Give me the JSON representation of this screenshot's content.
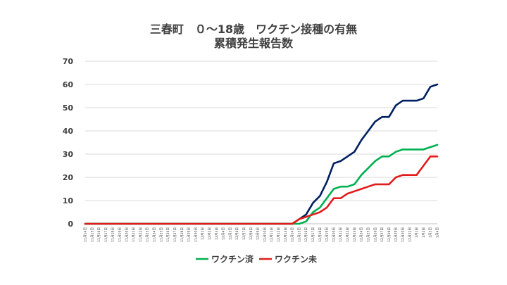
{
  "chart_data": {
    "type": "line",
    "title": "三春町　０～18歳　ワクチン接種の有無",
    "subtitle": "累積発生報告数",
    "xlabel": "",
    "ylabel": "",
    "ylim": [
      0,
      70
    ],
    "yticks": [
      0,
      10,
      20,
      30,
      40,
      50,
      60,
      70
    ],
    "grid": true,
    "legend_position": "bottom",
    "x": [
      "11月14日",
      "11月15日",
      "11月16日",
      "11月17日",
      "11月18日",
      "11月19日",
      "11月20日",
      "11月21日",
      "11月22日",
      "11月23日",
      "11月24日",
      "11月25日",
      "11月26日",
      "11月27日",
      "11月28日",
      "11月29日",
      "11月30日",
      "12月1日",
      "12月2日",
      "12月3日",
      "12月4日",
      "12月5日",
      "12月6日",
      "12月7日",
      "12月8日",
      "12月9日",
      "12月10日",
      "12月11日",
      "12月12日",
      "12月13日",
      "12月14日",
      "12月15日",
      "12月16日",
      "12月17日",
      "12月18日",
      "12月19日",
      "12月20日",
      "12月21日",
      "12月22日",
      "12月23日",
      "12月24日",
      "12月25日",
      "12月26日",
      "12月27日",
      "12月28日",
      "12月29日",
      "12月30日",
      "12月31日",
      "1月1日",
      "1月2日",
      "1月3日",
      "1月4日"
    ],
    "series": [
      {
        "name": "",
        "color": "#002060",
        "values": [
          0,
          0,
          0,
          0,
          0,
          0,
          0,
          0,
          0,
          0,
          0,
          0,
          0,
          0,
          0,
          0,
          0,
          0,
          0,
          0,
          0,
          0,
          0,
          0,
          0,
          0,
          0,
          0,
          0,
          0,
          0,
          2,
          4,
          9,
          12,
          18,
          26,
          27,
          29,
          31,
          36,
          40,
          44,
          46,
          46,
          51,
          53,
          53,
          53,
          54,
          59,
          60
        ]
      },
      {
        "name": "ワクチン済",
        "color": "#00B050",
        "values": [
          0,
          0,
          0,
          0,
          0,
          0,
          0,
          0,
          0,
          0,
          0,
          0,
          0,
          0,
          0,
          0,
          0,
          0,
          0,
          0,
          0,
          0,
          0,
          0,
          0,
          0,
          0,
          0,
          0,
          0,
          0,
          0,
          1,
          5,
          7,
          11,
          15,
          16,
          16,
          17,
          21,
          24,
          27,
          29,
          29,
          31,
          32,
          32,
          32,
          32,
          33,
          34
        ]
      },
      {
        "name": "ワクチン未",
        "color": "#E21B1B",
        "values": [
          0,
          0,
          0,
          0,
          0,
          0,
          0,
          0,
          0,
          0,
          0,
          0,
          0,
          0,
          0,
          0,
          0,
          0,
          0,
          0,
          0,
          0,
          0,
          0,
          0,
          0,
          0,
          0,
          0,
          0,
          0,
          2,
          3,
          4,
          5,
          7,
          11,
          11,
          13,
          14,
          15,
          16,
          17,
          17,
          17,
          20,
          21,
          21,
          21,
          25,
          29,
          29
        ]
      }
    ]
  }
}
